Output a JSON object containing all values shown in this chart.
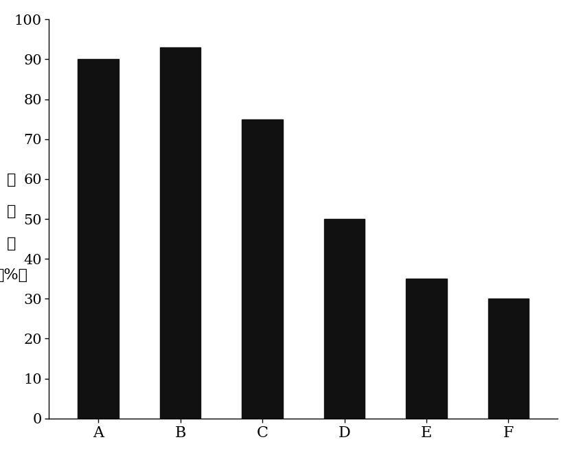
{
  "categories": [
    "A",
    "B",
    "C",
    "D",
    "E",
    "F"
  ],
  "values": [
    90,
    93,
    75,
    50,
    35,
    30
  ],
  "bar_color": "#111111",
  "ylabel_chars": [
    "越",
    "冬",
    "率",
    "（%）"
  ],
  "ylim": [
    0,
    100
  ],
  "yticks": [
    0,
    10,
    20,
    30,
    40,
    50,
    60,
    70,
    80,
    90,
    100
  ],
  "background_color": "#ffffff",
  "ylabel_fontsize": 16,
  "tick_fontsize": 15,
  "xlabel_fontsize": 16,
  "bar_width": 0.5,
  "figsize": [
    8.33,
    6.63
  ],
  "dpi": 100
}
